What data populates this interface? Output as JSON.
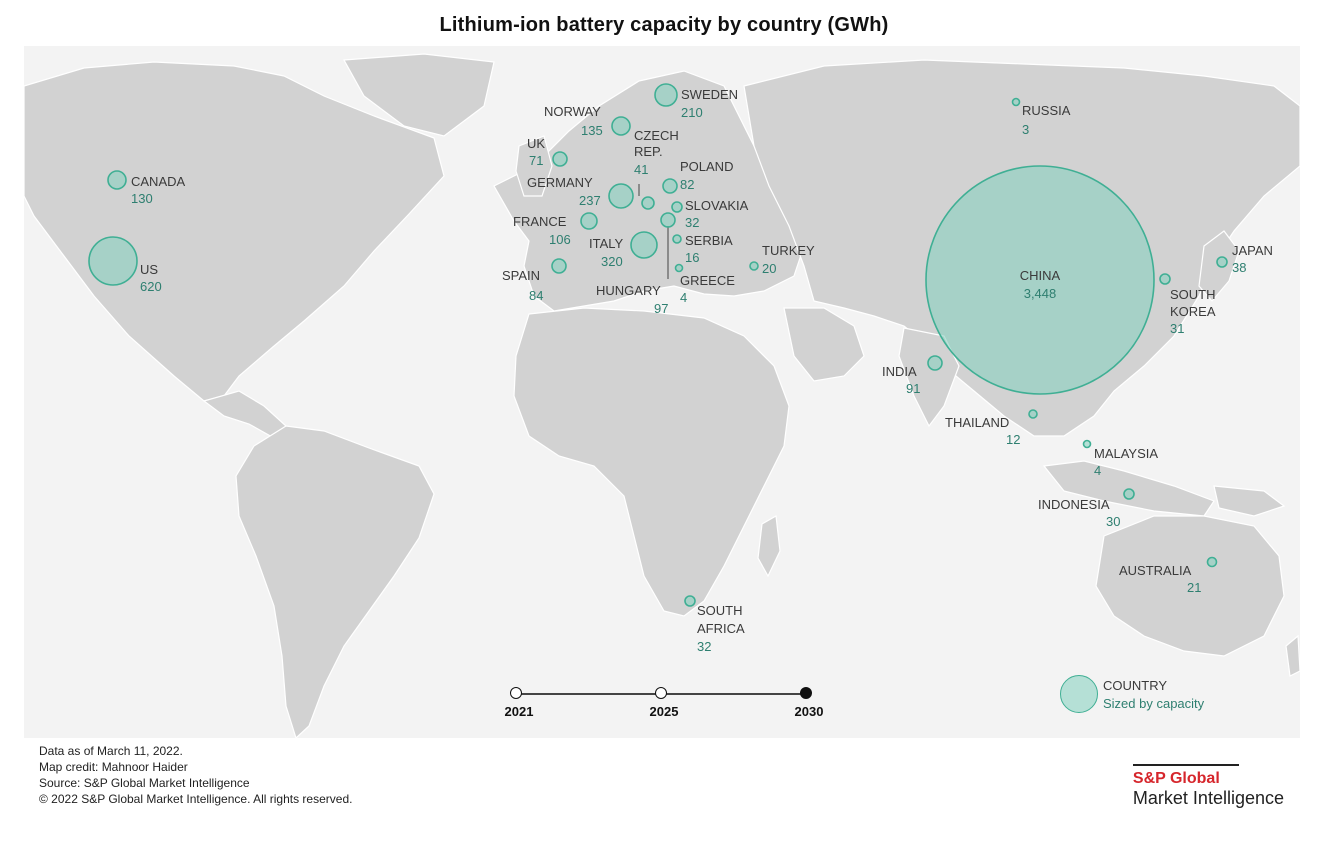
{
  "title": "Lithium-ion battery capacity by country (GWh)",
  "colors": {
    "bubble_fill": "#82d0be",
    "bubble_stroke": "#3faf94",
    "value_text": "#2e7f70",
    "land": "#d2d2d2",
    "brand": "#d6262c"
  },
  "countries": [
    {
      "name": "US",
      "value": "620"
    },
    {
      "name": "CANADA",
      "value": "130"
    },
    {
      "name": "UK",
      "value": "71"
    },
    {
      "name": "NORWAY",
      "value": "135"
    },
    {
      "name": "SWEDEN",
      "value": "210"
    },
    {
      "name": "CZECH REP.",
      "value": "41"
    },
    {
      "name": "POLAND",
      "value": "82"
    },
    {
      "name": "GERMANY",
      "value": "237"
    },
    {
      "name": "SLOVAKIA",
      "value": "32"
    },
    {
      "name": "FRANCE",
      "value": "106"
    },
    {
      "name": "ITALY",
      "value": "320"
    },
    {
      "name": "SERBIA",
      "value": "16"
    },
    {
      "name": "SPAIN",
      "value": "84"
    },
    {
      "name": "HUNGARY",
      "value": "97"
    },
    {
      "name": "GREECE",
      "value": "4"
    },
    {
      "name": "TURKEY",
      "value": "20"
    },
    {
      "name": "RUSSIA",
      "value": "3"
    },
    {
      "name": "CHINA",
      "value": "3,448"
    },
    {
      "name": "JAPAN",
      "value": "38"
    },
    {
      "name": "SOUTH KOREA",
      "value": "31"
    },
    {
      "name": "INDIA",
      "value": "91"
    },
    {
      "name": "THAILAND",
      "value": "12"
    },
    {
      "name": "MALAYSIA",
      "value": "4"
    },
    {
      "name": "INDONESIA",
      "value": "30"
    },
    {
      "name": "AUSTRALIA",
      "value": "21"
    },
    {
      "name": "SOUTH AFRICA",
      "value": "32"
    }
  ],
  "timeline": {
    "years": [
      "2021",
      "2025",
      "2030"
    ],
    "selected": "2030"
  },
  "legend": {
    "title": "COUNTRY",
    "subtitle": "Sized by capacity"
  },
  "notes": [
    "Data as of March 11, 2022.",
    "Map credit: Mahnoor Haider",
    "Source: S&P Global Market Intelligence",
    "© 2022 S&P Global Market Intelligence. All rights reserved."
  ],
  "brand": {
    "name": "S&P Global",
    "sub": "Market Intelligence"
  }
}
